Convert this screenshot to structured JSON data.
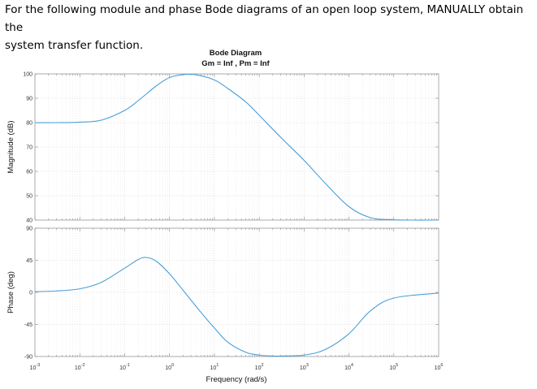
{
  "question": {
    "line1": "For the following module and phase Bode diagrams of an open loop system, MANUALLY obtain the",
    "line2": "system transfer function."
  },
  "chart_data": {
    "type": "line",
    "title": "Bode Diagram",
    "subtitle": "Gm = Inf ,  Pm = Inf",
    "xlabel": "Frequency (rad/s)",
    "xscale": "log",
    "xlim": [
      0.001,
      1000000
    ],
    "x_ticks": [
      {
        "base": "10",
        "exp": "-3"
      },
      {
        "base": "10",
        "exp": "-2"
      },
      {
        "base": "10",
        "exp": "-1"
      },
      {
        "base": "10",
        "exp": "0"
      },
      {
        "base": "10",
        "exp": "1"
      },
      {
        "base": "10",
        "exp": "2"
      },
      {
        "base": "10",
        "exp": "3"
      },
      {
        "base": "10",
        "exp": "4"
      },
      {
        "base": "10",
        "exp": "5"
      },
      {
        "base": "10",
        "exp": "6"
      }
    ],
    "grid": true,
    "line_color": "#4a9fd8",
    "magnitude": {
      "ylabel": "Magnitude (dB)",
      "ylim": [
        40,
        100
      ],
      "yticks": [
        "40",
        "50",
        "60",
        "70",
        "80",
        "90",
        "100"
      ],
      "x": [
        0.001,
        0.003,
        0.01,
        0.03,
        0.1,
        0.2,
        0.5,
        1,
        2,
        4,
        10,
        20,
        50,
        100,
        300,
        1000,
        3000,
        10000,
        30000,
        100000,
        1000000
      ],
      "y": [
        80,
        80,
        80.2,
        81,
        85,
        89,
        95,
        98.5,
        99.7,
        99.6,
        97.5,
        94,
        88.5,
        83,
        74,
        64.5,
        55,
        45.5,
        41,
        40.1,
        40
      ]
    },
    "phase": {
      "ylabel": "Phase (deg)",
      "ylim": [
        -90,
        90
      ],
      "yticks": [
        "-90",
        "-45",
        "0",
        "45",
        "90"
      ],
      "x": [
        0.001,
        0.003,
        0.01,
        0.03,
        0.1,
        0.2,
        0.3,
        0.5,
        1,
        2,
        5,
        10,
        20,
        50,
        100,
        200,
        300,
        1000,
        3000,
        10000,
        30000,
        100000,
        1000000
      ],
      "y": [
        1,
        2,
        5,
        14,
        34,
        46,
        49,
        44,
        26,
        3,
        -28,
        -50,
        -70,
        -84,
        -88,
        -89.3,
        -89.3,
        -88,
        -80,
        -58,
        -26,
        -8,
        -1
      ]
    }
  }
}
